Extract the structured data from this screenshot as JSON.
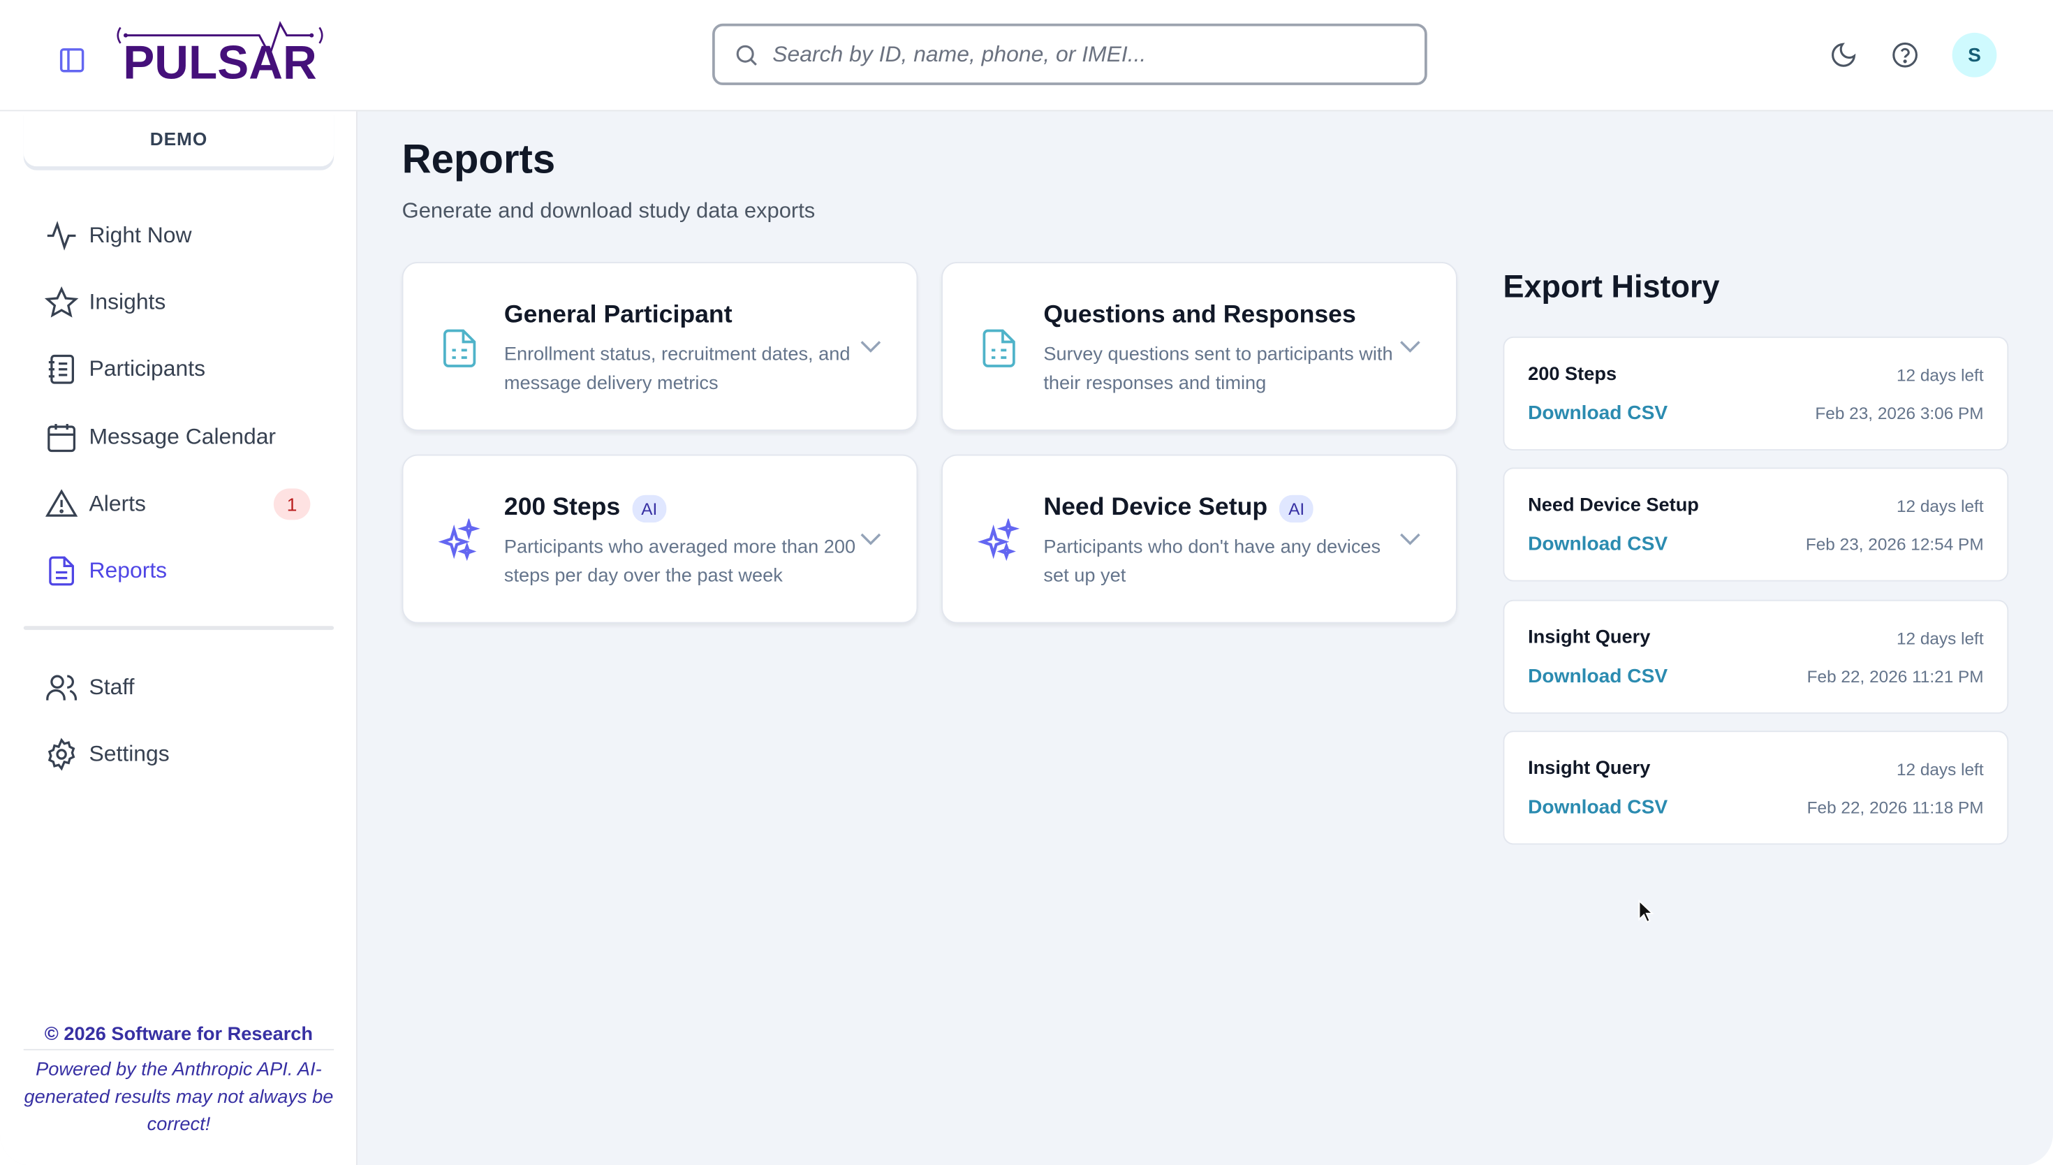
{
  "header": {
    "logo_text": "PULSAR",
    "search_placeholder": "Search by ID, name, phone, or IMEI...",
    "avatar_initial": "S"
  },
  "sidebar": {
    "study": "DEMO",
    "items": [
      {
        "label": "Right Now",
        "icon": "activity-icon"
      },
      {
        "label": "Insights",
        "icon": "star-icon"
      },
      {
        "label": "Participants",
        "icon": "notebook-icon"
      },
      {
        "label": "Message Calendar",
        "icon": "calendar-icon"
      },
      {
        "label": "Alerts",
        "icon": "alert-triangle-icon",
        "badge": "1"
      },
      {
        "label": "Reports",
        "icon": "file-text-icon",
        "active": true
      }
    ],
    "secondary": [
      {
        "label": "Staff",
        "icon": "users-icon"
      },
      {
        "label": "Settings",
        "icon": "gear-icon"
      }
    ],
    "copyright": "© 2026 Software for Research",
    "ai_note": "Powered by the Anthropic API. AI-generated results may not always be correct!"
  },
  "main": {
    "title": "Reports",
    "subtitle": "Generate and download study data exports",
    "reports": [
      {
        "title": "General Participant",
        "desc": "Enrollment status, recruitment dates, and message delivery metrics",
        "icon": "file-icon",
        "ai": false
      },
      {
        "title": "Questions and Responses",
        "desc": "Survey questions sent to participants with their responses and timing",
        "icon": "file-icon",
        "ai": false
      },
      {
        "title": "200 Steps",
        "desc": "Participants who averaged more than 200 steps per day over the past week",
        "icon": "sparkles-icon",
        "ai": true
      },
      {
        "title": "Need Device Setup",
        "desc": "Participants who don't have any devices set up yet",
        "icon": "sparkles-icon",
        "ai": true
      }
    ],
    "ai_badge": "AI"
  },
  "history": {
    "title": "Export History",
    "items": [
      {
        "name": "200 Steps",
        "remaining": "12 days left",
        "link": "Download CSV",
        "time": "Feb 23, 2026 3:06 PM"
      },
      {
        "name": "Need Device Setup",
        "remaining": "12 days left",
        "link": "Download CSV",
        "time": "Feb 23, 2026 12:54 PM"
      },
      {
        "name": "Insight Query",
        "remaining": "12 days left",
        "link": "Download CSV",
        "time": "Feb 22, 2026 11:21 PM"
      },
      {
        "name": "Insight Query",
        "remaining": "12 days left",
        "link": "Download CSV",
        "time": "Feb 22, 2026 11:18 PM"
      }
    ]
  },
  "colors": {
    "accent": "#4f46e5",
    "logo": "#45107a",
    "link": "#2b8bb0",
    "file_icon": "#4fb3c9",
    "sparkle": "#6366f1"
  }
}
